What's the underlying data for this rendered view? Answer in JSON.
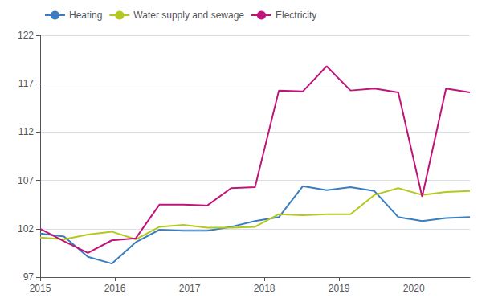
{
  "chart_data": {
    "type": "line",
    "x": [
      2015,
      2015.3194444444443,
      2015.638888888889,
      2015.9583333333333,
      2016.2777777777778,
      2016.5972222222222,
      2016.9166666666667,
      2017.236111111111,
      2017.5555555555554,
      2017.875,
      2018.1944444444446,
      2018.513888888889,
      2018.8333333333333,
      2019.1527777777778,
      2019.4722222222222,
      2019.7916666666667,
      2020.111111111111,
      2020.4305555555557,
      2020.75
    ],
    "series": [
      {
        "name": "Heating",
        "color": "#3a7ebf",
        "values": [
          101.5,
          101.2,
          99.1,
          98.4,
          100.6,
          101.9,
          101.8,
          101.8,
          102.2,
          102.8,
          103.2,
          106.4,
          106.0,
          106.3,
          105.9,
          103.2,
          102.8,
          103.1,
          103.2
        ]
      },
      {
        "name": "Water supply and sewage",
        "color": "#b5c81e",
        "values": [
          101.1,
          100.9,
          101.4,
          101.7,
          100.9,
          102.2,
          102.4,
          102.1,
          102.1,
          102.2,
          103.5,
          103.4,
          103.5,
          103.5,
          105.5,
          106.2,
          105.5,
          105.8,
          105.9
        ]
      },
      {
        "name": "Electricity",
        "color": "#c0147a",
        "values": [
          102.0,
          100.7,
          99.5,
          100.8,
          101.0,
          104.5,
          104.5,
          104.4,
          106.2,
          106.3,
          116.3,
          116.2,
          118.8,
          116.3,
          116.5,
          116.1,
          105.3,
          116.5,
          116.1
        ]
      }
    ],
    "xlim": [
      2015,
      2020.75
    ],
    "xticks": [
      2015,
      2016,
      2017,
      2018,
      2019,
      2020
    ],
    "ylim": [
      97,
      122
    ],
    "yticks": [
      97,
      102,
      107,
      112,
      117,
      122
    ],
    "grid": true,
    "legend": "upper left"
  }
}
